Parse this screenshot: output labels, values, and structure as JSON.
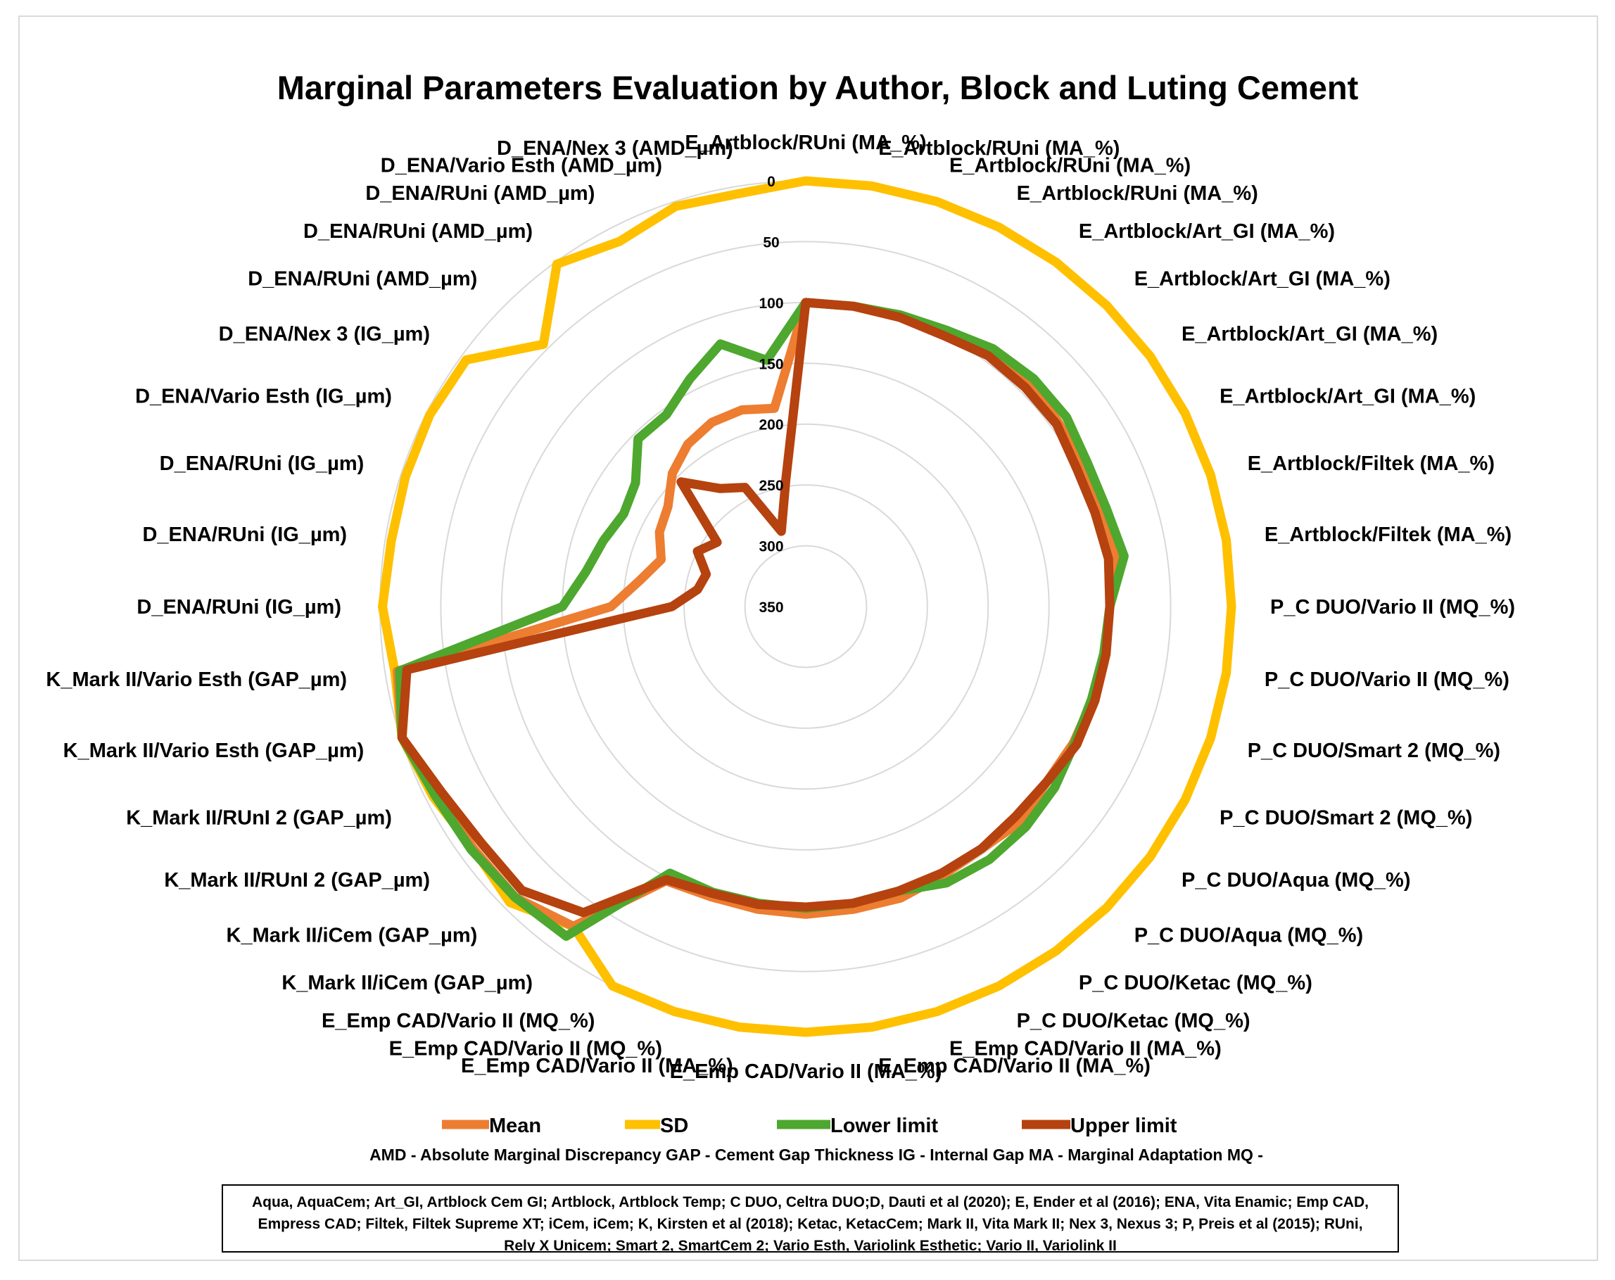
{
  "colors": {
    "mean": "#ED7D31",
    "sd": "#FFC000",
    "lower": "#4EA72E",
    "upper": "#C0504D",
    "upper_dark": "#B5420F",
    "grid": "#D9D9D9"
  },
  "footer": {
    "abbreviations": "AMD - Absolute Marginal Discrepancy   GAP - Cement Gap Thickness   IG - Internal Gap   MA - Marginal Adaptation   MQ -",
    "notes": "Aqua, AquaCem; Art_GI, Artblock Cem GI; Artblock, Artblock Temp; C DUO, Celtra DUO;D, Dauti et al (2020); E, Ender et al (2016); ENA, Vita Enamic; Emp CAD, Empress CAD; Filtek, Filtek Supreme XT; iCem, iCem; K, Kirsten et al (2018); Ketac, KetacCem; Mark II, Vita Mark II; Nex 3, Nexus 3; P, Preis et al (2015); RUni, Rely X Unicem; Smart 2, SmartCem 2; Vario Esth, Variolink Esthetic; Vario II, Variolink II"
  },
  "chart_data": {
    "type": "radar",
    "title": "Marginal Parameters Evaluation by Author, Block and Luting Cement",
    "axis": {
      "min": 0,
      "max": 350,
      "step": 50,
      "reversed": true,
      "tick_labels": [
        "0",
        "50",
        "100",
        "150",
        "200",
        "250",
        "300",
        "350"
      ]
    },
    "grid": true,
    "legend_position": "bottom",
    "categories": [
      "E_Artblock/RUni (MA_%)",
      "E_Artblock/RUni (MA_%)",
      "E_Artblock/RUni (MA_%)",
      "E_Artblock/RUni (MA_%)",
      "E_Artblock/Art_GI (MA_%)",
      "E_Artblock/Art_GI (MA_%)",
      "E_Artblock/Art_GI (MA_%)",
      "E_Artblock/Art_GI (MA_%)",
      "E_Artblock/Filtek (MA_%)",
      "E_Artblock/Filtek (MA_%)",
      "P_C DUO/Vario II (MQ_%)",
      "P_C DUO/Vario II (MQ_%)",
      "P_C DUO/Smart 2 (MQ_%)",
      "P_C DUO/Smart 2 (MQ_%)",
      "P_C DUO/Aqua (MQ_%)",
      "P_C DUO/Aqua (MQ_%)",
      "P_C DUO/Ketac (MQ_%)",
      "P_C DUO/Ketac (MQ_%)",
      "E_Emp CAD/Vario II (MA_%)",
      "E_Emp CAD/Vario II (MA_%)",
      "E_Emp CAD/Vario II (MA_%)",
      "E_Emp CAD/Vario II (MA_%)",
      "E_Emp CAD/Vario II (MQ_%)",
      "E_Emp CAD/Vario II (MQ_%)",
      "K_Mark II/iCem (GAP_µm)",
      "K_Mark II/iCem (GAP_µm)",
      "K_Mark II/RUnI 2 (GAP_µm)",
      "K_Mark II/RUnI 2 (GAP_µm)",
      "K_Mark II/Vario Esth (GAP_µm)",
      "K_Mark II/Vario Esth (GAP_µm)",
      "D_ENA/RUni (IG_µm)",
      "D_ENA/RUni (IG_µm)",
      "D_ENA/RUni (IG_µm)",
      "D_ENA/Vario Esth (IG_µm)",
      "D_ENA/Nex 3 (IG_µm)",
      "D_ENA/RUni (AMD_µm)",
      "D_ENA/RUni (AMD_µm)",
      "D_ENA/RUni (AMD_µm)",
      "D_ENA/Vario Esth (AMD_µm)",
      "D_ENA/Nex 3 (AMD_µm)"
    ],
    "series": [
      {
        "name": "Mean",
        "values": [
          100,
          100,
          98,
          95,
          92,
          90,
          93,
          95,
          95,
          92,
          100,
          101,
          102,
          103,
          105,
          100,
          104,
          102,
          98,
          98,
          97,
          98,
          99,
          97,
          25,
          12,
          12,
          10,
          1,
          10,
          190,
          212,
          225,
          215,
          210,
          195,
          185,
          180,
          180,
          185
        ]
      },
      {
        "name": "SD",
        "values": [
          0,
          0,
          0,
          0,
          0,
          0,
          0,
          0,
          0,
          0,
          0,
          0,
          0,
          0,
          0,
          0,
          0,
          0,
          0,
          0,
          0,
          0,
          0,
          0,
          25,
          6,
          12,
          6,
          1,
          8,
          2,
          5,
          4,
          3,
          5,
          45,
          2,
          13,
          4,
          6
        ]
      },
      {
        "name": "Lower limit",
        "values": [
          100,
          100,
          98,
          95,
          88,
          85,
          85,
          90,
          90,
          85,
          100,
          102,
          103,
          102,
          97,
          94,
          93,
          95,
          104,
          103,
          102,
          103,
          103,
          104,
          15,
          12,
          10,
          8,
          1,
          12,
          150,
          167,
          175,
          182,
          177,
          155,
          155,
          140,
          123,
          145
        ]
      },
      {
        "name": "Upper limit",
        "values": [
          100,
          100,
          100,
          100,
          95,
          95,
          95,
          100,
          100,
          98,
          100,
          100,
          100,
          100,
          105,
          106,
          104,
          104,
          104,
          103,
          103,
          102,
          102,
          98,
          39,
          20,
          20,
          14,
          1,
          18,
          240,
          260,
          264,
          250,
          260,
          205,
          230,
          240,
          285,
          245
        ]
      }
    ]
  }
}
